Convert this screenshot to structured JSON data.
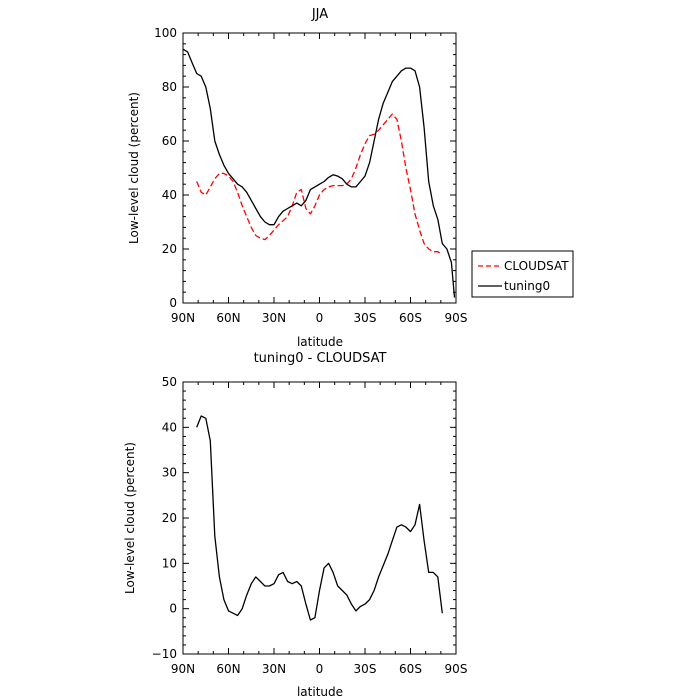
{
  "chart_data": [
    {
      "type": "line",
      "title": "JJA",
      "xlabel": "latitude",
      "ylabel": "Low-level cloud (percent)",
      "xlim": [
        90,
        -90
      ],
      "ylim": [
        0,
        100
      ],
      "xticks": [
        90,
        60,
        30,
        0,
        -30,
        -60,
        -90
      ],
      "xtick_labels": [
        "90N",
        "60N",
        "30N",
        "0",
        "30S",
        "60S",
        "90S"
      ],
      "yticks": [
        0,
        20,
        40,
        60,
        80,
        100
      ],
      "ytick_labels": [
        "0",
        "20",
        "40",
        "60",
        "80",
        "100"
      ],
      "legend_position": "right, outside plot",
      "series": [
        {
          "name": "CLOUDSAT",
          "color": "#ff0000",
          "style": "dashed",
          "x": [
            81,
            78,
            75,
            72,
            69,
            66,
            63,
            60,
            57,
            54,
            51,
            48,
            45,
            42,
            39,
            36,
            33,
            30,
            27,
            24,
            21,
            18,
            15,
            12,
            9,
            6,
            3,
            0,
            -3,
            -6,
            -9,
            -12,
            -15,
            -18,
            -21,
            -24,
            -27,
            -30,
            -33,
            -36,
            -39,
            -42,
            -45,
            -48,
            -51,
            -54,
            -57,
            -60,
            -63,
            -66,
            -69,
            -72,
            -75,
            -78,
            -81
          ],
          "y": [
            45,
            41,
            40,
            43,
            46,
            48,
            48,
            47,
            45,
            41,
            36,
            32,
            28,
            25,
            24,
            23.5,
            25,
            27,
            29,
            30.5,
            32,
            36,
            41,
            42,
            35,
            33,
            36,
            40,
            42,
            43,
            43.5,
            43.5,
            43.5,
            44,
            46,
            50,
            55,
            59,
            62,
            62.5,
            64,
            66,
            68,
            70,
            68,
            60,
            50,
            42,
            33,
            27,
            22,
            20,
            19,
            19,
            18
          ]
        },
        {
          "name": "tuning0",
          "color": "#000000",
          "style": "solid",
          "x": [
            90,
            87,
            84,
            81,
            78,
            75,
            72,
            69,
            66,
            63,
            60,
            57,
            54,
            51,
            48,
            45,
            42,
            39,
            36,
            33,
            30,
            27,
            24,
            21,
            18,
            15,
            12,
            9,
            6,
            3,
            0,
            -3,
            -6,
            -9,
            -12,
            -15,
            -18,
            -21,
            -24,
            -27,
            -30,
            -33,
            -36,
            -39,
            -42,
            -45,
            -48,
            -51,
            -54,
            -57,
            -60,
            -63,
            -66,
            -69,
            -72,
            -75,
            -78,
            -81,
            -84,
            -87,
            -89
          ],
          "y": [
            94,
            93,
            89,
            85,
            84,
            80,
            72,
            60,
            55,
            51,
            48,
            46,
            44,
            43,
            41,
            38,
            35,
            32,
            30,
            29,
            29,
            32,
            34,
            35,
            36,
            37,
            36,
            38,
            42,
            43,
            44,
            45,
            46.5,
            47.5,
            47,
            46,
            44,
            43,
            43,
            45,
            47,
            52,
            60,
            68,
            74,
            78,
            82,
            84,
            86,
            87,
            87,
            86,
            80,
            65,
            45,
            36,
            31,
            22,
            20,
            15,
            2
          ]
        }
      ]
    },
    {
      "type": "line",
      "title": "tuning0 - CLOUDSAT",
      "xlabel": "latitude",
      "ylabel": "Low-level cloud (percent)",
      "xlim": [
        90,
        -90
      ],
      "ylim": [
        -10,
        50
      ],
      "xticks": [
        90,
        60,
        30,
        0,
        -30,
        -60,
        -90
      ],
      "xtick_labels": [
        "90N",
        "60N",
        "30N",
        "0",
        "30S",
        "60S",
        "90S"
      ],
      "yticks": [
        -10,
        0,
        10,
        20,
        30,
        40,
        50
      ],
      "ytick_labels": [
        "−10",
        "0",
        "10",
        "20",
        "30",
        "40",
        "50"
      ],
      "series": [
        {
          "color": "#000000",
          "style": "solid",
          "x": [
            81,
            78,
            75,
            72,
            69,
            66,
            63,
            60,
            57,
            54,
            51,
            48,
            45,
            42,
            39,
            36,
            33,
            30,
            27,
            24,
            21,
            18,
            15,
            12,
            9,
            6,
            3,
            0,
            -3,
            -6,
            -9,
            -12,
            -15,
            -18,
            -21,
            -24,
            -27,
            -30,
            -33,
            -36,
            -39,
            -42,
            -45,
            -48,
            -51,
            -54,
            -57,
            -60,
            -63,
            -66,
            -69,
            -72,
            -75,
            -78,
            -81
          ],
          "y": [
            40,
            42.5,
            42,
            37,
            16,
            7,
            2,
            -0.5,
            -1,
            -1.5,
            0,
            3,
            5.5,
            7,
            6,
            5,
            5,
            5.5,
            7.5,
            8,
            6,
            5.5,
            6,
            5,
            1,
            -2.5,
            -2,
            4,
            9,
            10,
            8,
            5,
            4,
            3,
            1,
            -0.5,
            0.5,
            1,
            2,
            4,
            7,
            9.5,
            12,
            15,
            18,
            18.5,
            18,
            17,
            18.5,
            23,
            15,
            8,
            8,
            7,
            -1
          ]
        }
      ]
    }
  ]
}
